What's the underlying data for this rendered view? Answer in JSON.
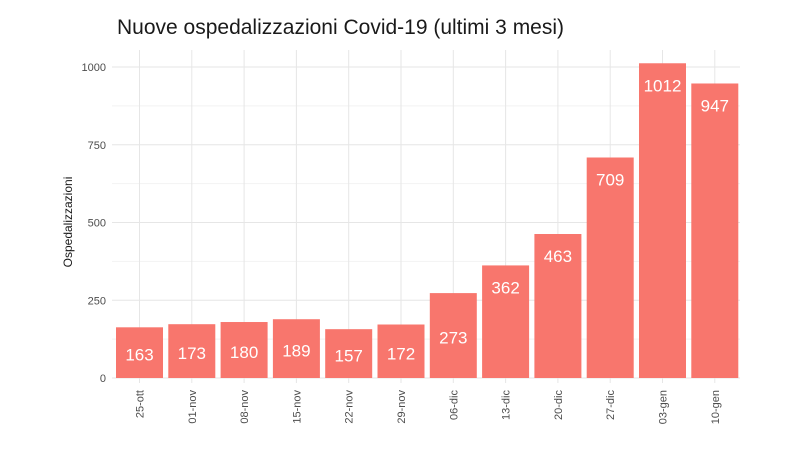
{
  "chart_data": {
    "type": "bar",
    "title": "Nuove ospedalizzazioni Covid-19 (ultimi 3 mesi)",
    "xlabel": "",
    "ylabel": "Ospedalizzazioni",
    "categories": [
      "25-ott",
      "01-nov",
      "08-nov",
      "15-nov",
      "22-nov",
      "29-nov",
      "06-dic",
      "13-dic",
      "20-dic",
      "27-dic",
      "03-gen",
      "10-gen"
    ],
    "values": [
      163,
      173,
      180,
      189,
      157,
      172,
      273,
      362,
      463,
      709,
      1012,
      947
    ],
    "data_labels": [
      "163",
      "173",
      "180",
      "189",
      "157",
      "172",
      "273",
      "362",
      "463",
      "709",
      "1012",
      "947"
    ],
    "ylim": [
      0,
      1050
    ],
    "yticks": [
      0,
      250,
      500,
      750,
      1000
    ],
    "ytick_labels": [
      "0",
      "250",
      "500",
      "750",
      "1000"
    ],
    "grid": true,
    "legend": "none",
    "bar_color": "#F8766D"
  }
}
